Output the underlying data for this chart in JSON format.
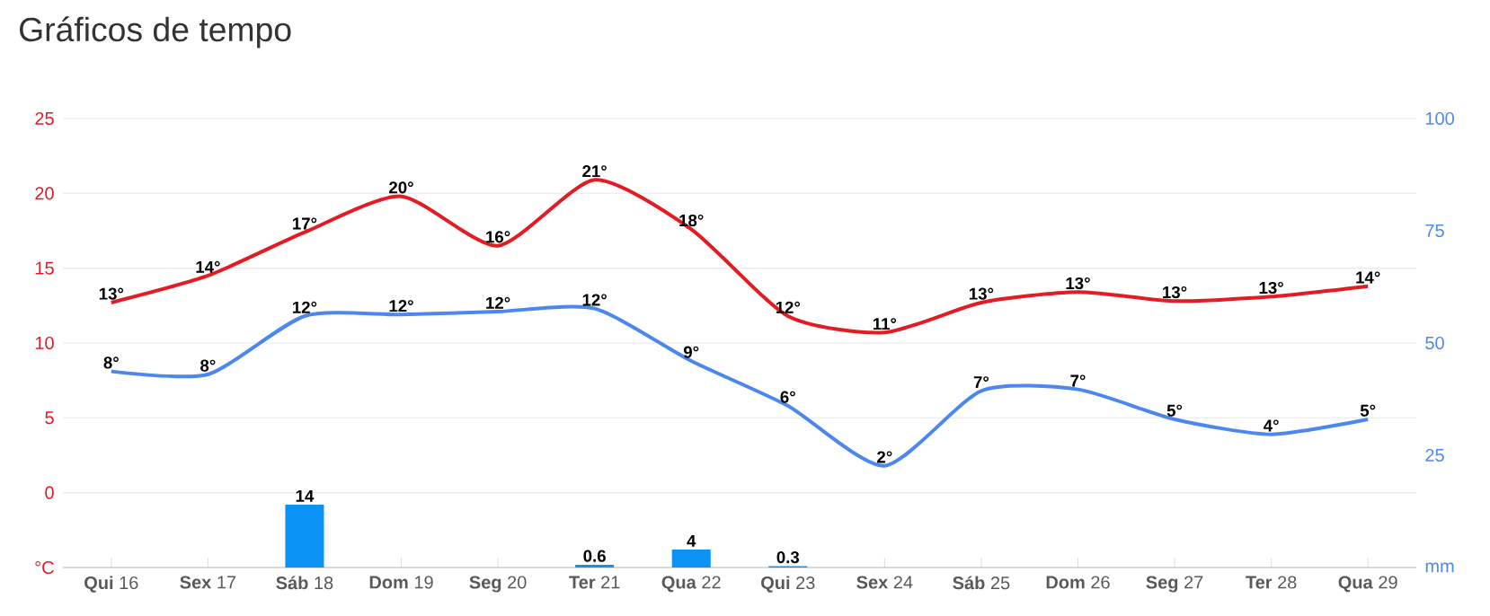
{
  "chart_data": {
    "type": "line",
    "title": "Gráficos de tempo",
    "categories": [
      "**Qui** 16",
      "**Sex** 17",
      "**Sáb** 18",
      "**Dom** 19",
      "**Seg** 20",
      "**Ter** 21",
      "**Qua** 22",
      "**Qui** 23",
      "**Sex** 24",
      "**Sáb** 25",
      "**Dom** 26",
      "**Seg** 27",
      "**Ter** 28",
      "**Qua** 29"
    ],
    "series": [
      {
        "color": "#e31b23",
        "axis": "y",
        "values": [
          12.7,
          14.5,
          17.4,
          19.8,
          16.5,
          20.9,
          17.6,
          11.8,
          10.7,
          12.7,
          13.4,
          12.8,
          13.1,
          13.8
        ],
        "value_labels": [
          "13°",
          "14°",
          "17°",
          "20°",
          "16°",
          "21°",
          "18°",
          "12°",
          "11°",
          "13°",
          "13°",
          "13°",
          "13°",
          "14°"
        ]
      },
      {
        "color": "#4c87f0",
        "axis": "y",
        "values": [
          8.1,
          7.9,
          11.8,
          11.9,
          12.1,
          12.3,
          8.8,
          5.8,
          1.8,
          6.8,
          6.9,
          4.9,
          3.9,
          4.9
        ],
        "value_labels": [
          "8°",
          "8°",
          "12°",
          "12°",
          "12°",
          "12°",
          "9°",
          "6°",
          "2°",
          "7°",
          "7°",
          "5°",
          "4°",
          "5°"
        ]
      },
      {
        "type": "bar",
        "color": "#0a93f5",
        "axis": "y2",
        "values": [
          null,
          null,
          14,
          null,
          null,
          0.6,
          4,
          0.3,
          null,
          null,
          null,
          null,
          null,
          null
        ],
        "value_labels": [
          null,
          null,
          "14",
          null,
          null,
          "0.6",
          "4",
          "0.3",
          null,
          null,
          null,
          null,
          null,
          null
        ]
      }
    ],
    "ylim": [
      -5,
      25
    ],
    "yticks": [
      {
        "value": -5,
        "label": "°C"
      },
      0,
      5,
      10,
      15,
      20,
      25
    ],
    "y2lim": [
      0,
      100
    ],
    "y2ticks": [
      {
        "value": 0,
        "label": "mm"
      },
      25,
      50,
      75,
      100
    ],
    "grid": "y"
  }
}
